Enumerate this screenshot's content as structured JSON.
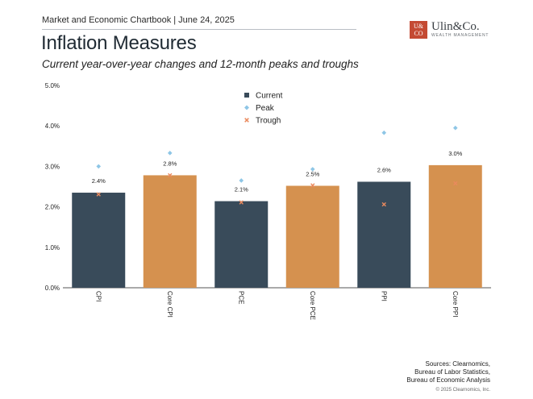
{
  "header": {
    "chartbook": "Market and Economic Chartbook | June 24, 2025",
    "logo_box_line1": "U&",
    "logo_box_line2": "CO",
    "logo_name": "Ulin&Co.",
    "logo_sub": "WEALTH MANAGEMENT"
  },
  "title": "Inflation Measures",
  "subtitle": "Current year-over-year changes and 12-month peaks and troughs",
  "footer": {
    "sources_line1": "Sources: Clearnomics,",
    "sources_line2": "Bureau of Labor Statistics,",
    "sources_line3": "Bureau of Economic Analysis",
    "copyright": "© 2025 Clearnomics, Inc."
  },
  "chart_data": {
    "type": "bar",
    "categories": [
      "CPI",
      "Core CPI",
      "PCE",
      "Core PCE",
      "PPI",
      "Core PPI"
    ],
    "series": [
      {
        "name": "Current",
        "values": [
          2.35,
          2.78,
          2.14,
          2.52,
          2.62,
          3.03
        ]
      },
      {
        "name": "Peak",
        "values": [
          3.0,
          3.33,
          2.65,
          2.93,
          3.83,
          3.95
        ]
      },
      {
        "name": "Trough",
        "values": [
          2.31,
          2.78,
          2.11,
          2.53,
          2.06,
          2.58
        ]
      }
    ],
    "data_labels": [
      "2.4%",
      "2.8%",
      "2.1%",
      "2.5%",
      "2.6%",
      "3.0%"
    ],
    "bar_colors": [
      "#394b5a",
      "#d5914f",
      "#394b5a",
      "#d5914f",
      "#394b5a",
      "#d5914f"
    ],
    "peak_color": "#8ec6e6",
    "trough_color": "#ea8a5e",
    "ylim": [
      0,
      5
    ],
    "yticks": [
      "0.0%",
      "1.0%",
      "2.0%",
      "3.0%",
      "4.0%",
      "5.0%"
    ],
    "legend": [
      "Current",
      "Peak",
      "Trough"
    ],
    "legend_position": "top-center",
    "grid": false
  }
}
